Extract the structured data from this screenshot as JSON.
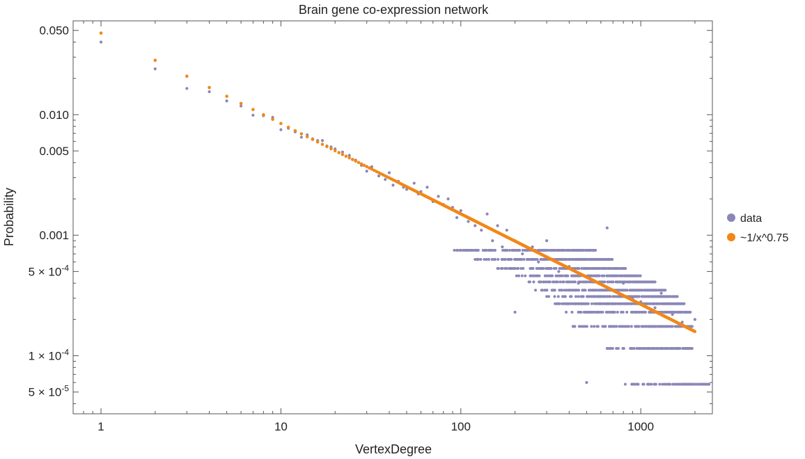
{
  "colors": {
    "data": "#8a87b8",
    "fit": "#f28717",
    "frame": "#555555"
  },
  "chart_data": {
    "type": "scatter",
    "title": "Brain gene co-expression network",
    "xlabel": "VertexDegree",
    "ylabel": "Probability",
    "xscale": "log",
    "yscale": "log",
    "xlim": [
      0.7,
      2500
    ],
    "ylim": [
      3.3e-05,
      0.06
    ],
    "x_ticks": [
      {
        "value": 1,
        "label": "1"
      },
      {
        "value": 10,
        "label": "10"
      },
      {
        "value": 100,
        "label": "100"
      },
      {
        "value": 1000,
        "label": "1000"
      }
    ],
    "y_ticks": [
      {
        "value": 0.05,
        "label": "0.050",
        "exp": ""
      },
      {
        "value": 0.01,
        "label": "0.010",
        "exp": ""
      },
      {
        "value": 0.005,
        "label": "0.005",
        "exp": ""
      },
      {
        "value": 0.001,
        "label": "0.001",
        "exp": ""
      },
      {
        "value": 0.0005,
        "label": "5 × 10",
        "exp": "-4"
      },
      {
        "value": 0.0001,
        "label": "1 × 10",
        "exp": "-4"
      },
      {
        "value": 5e-05,
        "label": "5 × 10",
        "exp": "-5"
      }
    ],
    "legend": [
      {
        "name": "data",
        "color": "#8a87b8"
      },
      {
        "name": "~1/x^0.75",
        "color": "#f28717"
      }
    ],
    "legend_position": "right",
    "series": [
      {
        "name": "data",
        "values": [
          [
            1,
            0.04
          ],
          [
            2,
            0.024
          ],
          [
            3,
            0.0165
          ],
          [
            4,
            0.0155
          ],
          [
            5,
            0.013
          ],
          [
            6,
            0.0118
          ],
          [
            7,
            0.0099
          ],
          [
            8,
            0.0098
          ],
          [
            9,
            0.0095
          ],
          [
            10,
            0.0075
          ],
          [
            11,
            0.0077
          ],
          [
            12,
            0.0072
          ],
          [
            13,
            0.0065
          ],
          [
            14,
            0.0068
          ],
          [
            15,
            0.0063
          ],
          [
            16,
            0.0061
          ],
          [
            17,
            0.0061
          ],
          [
            18,
            0.0055
          ],
          [
            19,
            0.0054
          ],
          [
            20,
            0.0052
          ],
          [
            22,
            0.0049
          ],
          [
            24,
            0.0046
          ],
          [
            26,
            0.0042
          ],
          [
            28,
            0.0038
          ],
          [
            30,
            0.0034
          ],
          [
            32,
            0.0037
          ],
          [
            35,
            0.0031
          ],
          [
            38,
            0.0029
          ],
          [
            40,
            0.0033
          ],
          [
            42,
            0.0026
          ],
          [
            45,
            0.0028
          ],
          [
            48,
            0.0025
          ],
          [
            50,
            0.0024
          ],
          [
            55,
            0.0027
          ],
          [
            58,
            0.0022
          ],
          [
            60,
            0.0023
          ],
          [
            65,
            0.0025
          ],
          [
            70,
            0.0019
          ],
          [
            75,
            0.0021
          ],
          [
            80,
            0.0018
          ],
          [
            85,
            0.002
          ],
          [
            90,
            0.0017
          ],
          [
            95,
            0.0014
          ],
          [
            100,
            0.0016
          ],
          [
            110,
            0.0013
          ],
          [
            120,
            0.0012
          ],
          [
            130,
            0.0011
          ],
          [
            140,
            0.0015
          ],
          [
            150,
            0.0009
          ],
          [
            160,
            0.0012
          ],
          [
            170,
            0.0008
          ],
          [
            180,
            0.0011
          ],
          [
            200,
            0.0009
          ],
          [
            200,
            0.00023
          ],
          [
            220,
            0.0007
          ],
          [
            250,
            0.0008
          ],
          [
            270,
            0.0006
          ],
          [
            300,
            0.0009
          ],
          [
            350,
            0.0005
          ],
          [
            400,
            0.00055
          ],
          [
            450,
            0.0004
          ],
          [
            500,
            0.00045
          ],
          [
            500,
            6e-05
          ],
          [
            600,
            0.0004
          ],
          [
            650,
            0.00115
          ],
          [
            700,
            0.00035
          ],
          [
            800,
            0.0004
          ],
          [
            900,
            0.0003
          ],
          [
            1000,
            0.00028
          ],
          [
            1200,
            0.00025
          ],
          [
            1300,
            0.00033
          ],
          [
            1500,
            0.00022
          ],
          [
            1700,
            0.00019
          ],
          [
            2000,
            0.0002
          ]
        ],
        "bands": [
          {
            "y": 0.00075,
            "from": 90,
            "to": 560
          },
          {
            "y": 0.00063,
            "from": 120,
            "to": 700
          },
          {
            "y": 0.00053,
            "from": 150,
            "to": 830
          },
          {
            "y": 0.00046,
            "from": 200,
            "to": 1000
          },
          {
            "y": 0.00041,
            "from": 230,
            "to": 1200
          },
          {
            "y": 0.00035,
            "from": 260,
            "to": 1380
          },
          {
            "y": 0.00031,
            "from": 300,
            "to": 1600
          },
          {
            "y": 0.00027,
            "from": 330,
            "to": 1750
          },
          {
            "y": 0.00023,
            "from": 380,
            "to": 1900
          },
          {
            "y": 0.000175,
            "from": 420,
            "to": 1950
          },
          {
            "y": 0.000115,
            "from": 650,
            "to": 1950
          },
          {
            "y": 5.8e-05,
            "from": 800,
            "to": 2400
          }
        ]
      },
      {
        "name": "~1/x^0.75",
        "formula": "0.0475 * x^-0.75",
        "coefficient": 0.0475,
        "exponent": -0.75,
        "x_range": [
          1,
          2000
        ]
      }
    ]
  }
}
